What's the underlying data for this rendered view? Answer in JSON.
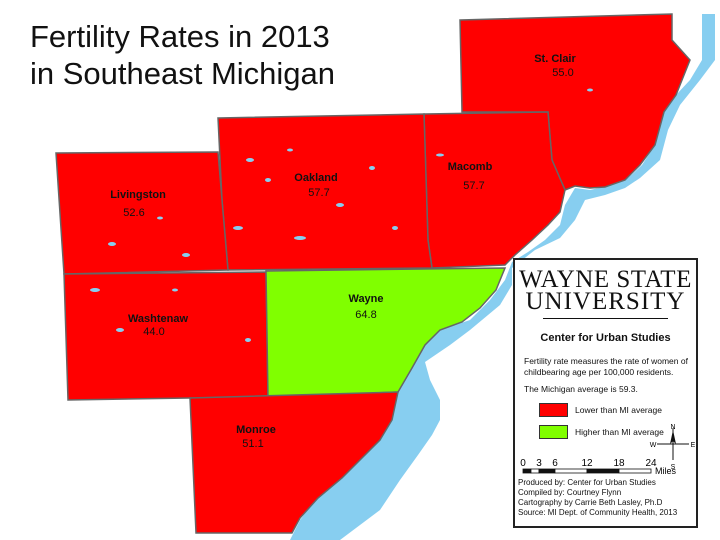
{
  "title_line1": "Fertility Rates in 2013",
  "title_line2": "in Southeast Michigan",
  "counties": [
    {
      "key": "stclair",
      "name": "St. Clair",
      "rate": "55.0",
      "color": "#ff0000"
    },
    {
      "key": "macomb",
      "name": "Macomb",
      "rate": "57.7",
      "color": "#ff0000"
    },
    {
      "key": "oakland",
      "name": "Oakland",
      "rate": "57.7",
      "color": "#ff0000"
    },
    {
      "key": "livingston",
      "name": "Livingston",
      "rate": "52.6",
      "color": "#ff0000"
    },
    {
      "key": "washtenaw",
      "name": "Washtenaw",
      "rate": "44.0",
      "color": "#ff0000"
    },
    {
      "key": "wayne",
      "name": "Wayne",
      "rate": "64.8",
      "color": "#80ff00"
    },
    {
      "key": "monroe",
      "name": "Monroe",
      "rate": "51.1",
      "color": "#ff0000"
    }
  ],
  "legend": {
    "university_line1": "WAYNE STATE",
    "university_line2": "UNIVERSITY",
    "center": "Center for Urban Studies",
    "description": "Fertility rate measures the rate of women of childbearing age per 100,000 residents.",
    "average": "The Michigan average is 59.3.",
    "lower_label": "Lower than MI average",
    "higher_label": "Higher than MI average",
    "lower_color": "#ff0000",
    "higher_color": "#80ff00",
    "water_color": "#87cef0",
    "scale_ticks": [
      "0",
      "3",
      "6",
      "12",
      "18",
      "24"
    ],
    "scale_unit": "Miles",
    "compass": {
      "n": "N",
      "s": "S",
      "e": "E",
      "w": "W"
    },
    "credits": [
      "Produced by: Center for Urban Studies",
      "Compiled by: Courtney Flynn",
      "Cartography by Carrie Beth Lasley, Ph.D",
      "Source: MI Dept. of Community Health, 2013"
    ]
  }
}
